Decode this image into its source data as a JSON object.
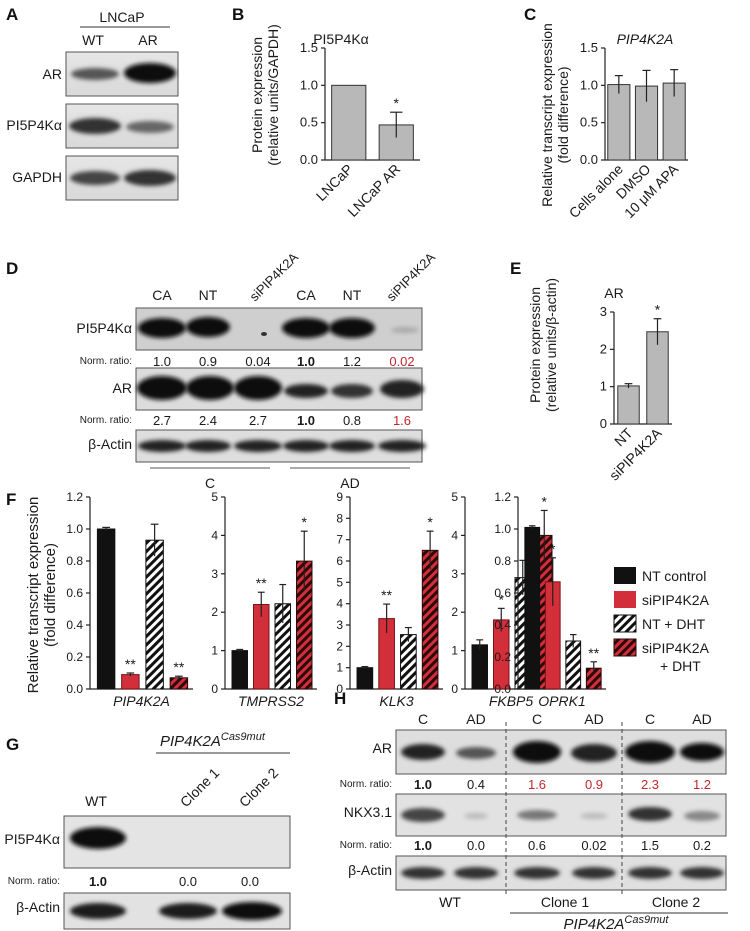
{
  "panels": {
    "A": {
      "letter": "A",
      "cell_line": "LNCaP",
      "lanes": [
        "WT",
        "AR"
      ],
      "rows": [
        "AR",
        "PI5P4Kα",
        "GAPDH"
      ]
    },
    "B": {
      "letter": "B",
      "title": "PI5P4Kα",
      "ylabel_1": "Protein expression",
      "ylabel_2": "(relative units/GAPDH)"
    },
    "C": {
      "letter": "C",
      "title": "PIP4K2A",
      "ylabel_1": "Relative transcript expression",
      "ylabel_2": "(fold difference)"
    },
    "D": {
      "letter": "D",
      "lanes": [
        "CA",
        "NT",
        "siPIP4K2A",
        "CA",
        "NT",
        "siPIP4K2A"
      ],
      "row1": "PI5P4Kα",
      "norm_label": "Norm. ratio:",
      "ratios1": [
        "1.0",
        "0.9",
        "0.04",
        "1.0",
        "1.2",
        "0.02"
      ],
      "row2": "AR",
      "ratios2": [
        "2.7",
        "2.4",
        "2.7",
        "1.0",
        "0.8",
        "1.6"
      ],
      "row3": "β-Actin",
      "group1": "C",
      "group2": "AD"
    },
    "E": {
      "letter": "E",
      "title": "AR",
      "ylabel_1": "Protein expression",
      "ylabel_2": "(relative units/β-actin)"
    },
    "F": {
      "letter": "F",
      "ylabel_1": "Relative transcript expression",
      "ylabel_2": "(fold difference)",
      "legend": [
        "NT control",
        "siPIP4K2A",
        "NT + DHT",
        "siPIP4K2A",
        "+ DHT"
      ]
    },
    "G": {
      "letter": "G",
      "gene": "PIP4K2A",
      "superscript": "Cas9mut",
      "lanes": [
        "WT",
        "Clone 1",
        "Clone 2"
      ],
      "row1": "PI5P4Kα",
      "norm_label": "Norm. ratio:",
      "ratios": [
        "1.0",
        "0.0",
        "0.0"
      ],
      "row2": "β-Actin"
    },
    "H": {
      "letter": "H",
      "lanes": [
        "C",
        "AD",
        "C",
        "AD",
        "C",
        "AD"
      ],
      "row1": "AR",
      "norm_label": "Norm. ratio:",
      "ratios1": [
        "1.0",
        "0.4",
        "1.6",
        "0.9",
        "2.3",
        "1.2"
      ],
      "row2": "NKX3.1",
      "ratios2": [
        "1.0",
        "0.0",
        "0.6",
        "0.02",
        "1.5",
        "0.2"
      ],
      "row3": "β-Actin",
      "groups": [
        "WT",
        "Clone 1",
        "Clone 2"
      ],
      "gene": "PIP4K2A",
      "superscript": "Cas9mut"
    }
  },
  "colors": {
    "grey_bar": "#b8b8b8",
    "black_bar": "#111111",
    "red_bar": "#d32f3a",
    "red_text": "#c0282d"
  },
  "chart_data": [
    {
      "id": "B",
      "type": "bar",
      "title": "PI5P4Kα",
      "categories": [
        "LNCaP",
        "LNCaP AR"
      ],
      "values": [
        1.0,
        0.47
      ],
      "errors": [
        0,
        0.17
      ],
      "significance": [
        "",
        "*"
      ],
      "ylim": [
        0,
        1.5
      ],
      "yticks": [
        "0.0",
        "0.5",
        "1.0",
        "1.5"
      ]
    },
    {
      "id": "C",
      "type": "bar",
      "title": "PIP4K2A",
      "categories": [
        "Cells alone",
        "DMSO",
        "10 μM APA"
      ],
      "values": [
        1.01,
        0.99,
        1.03
      ],
      "errors": [
        0.12,
        0.21,
        0.18
      ],
      "ylim": [
        0,
        1.5
      ],
      "yticks": [
        "0.0",
        "0.5",
        "1.0",
        "1.5"
      ]
    },
    {
      "id": "E",
      "type": "bar",
      "title": "AR",
      "categories": [
        "NT",
        "siPIP4K2A"
      ],
      "values": [
        1.02,
        2.47
      ],
      "errors": [
        0.06,
        0.35
      ],
      "significance": [
        "",
        "*"
      ],
      "ylim": [
        0,
        3
      ],
      "yticks": [
        "0",
        "1",
        "2",
        "3"
      ]
    },
    {
      "id": "F",
      "type": "bar",
      "series": [
        {
          "name": "NT control"
        },
        {
          "name": "siPIP4K2A"
        },
        {
          "name": "NT + DHT"
        },
        {
          "name": "siPIP4K2A + DHT"
        }
      ],
      "subplots": [
        {
          "gene": "PIP4K2A",
          "values": [
            1.0,
            0.09,
            0.93,
            0.07
          ],
          "errors": [
            0.01,
            0.01,
            0.1,
            0.01
          ],
          "significance": [
            "",
            "**",
            "",
            "**"
          ],
          "ylim": [
            0,
            1.2
          ],
          "yticks": [
            "0.0",
            "0.2",
            "0.4",
            "0.6",
            "0.8",
            "1.0",
            "1.2"
          ]
        },
        {
          "gene": "TMPRSS2",
          "values": [
            1.0,
            2.2,
            2.22,
            3.33
          ],
          "errors": [
            0.03,
            0.32,
            0.5,
            0.78
          ],
          "significance": [
            "",
            "**",
            "",
            "*"
          ],
          "ylim": [
            0,
            5
          ],
          "yticks": [
            "0",
            "1",
            "2",
            "3",
            "4",
            "5"
          ]
        },
        {
          "gene": "KLK3",
          "values": [
            1.0,
            3.3,
            2.55,
            6.5
          ],
          "errors": [
            0.05,
            0.68,
            0.33,
            0.9
          ],
          "significance": [
            "",
            "**",
            "",
            "*"
          ],
          "ylim": [
            0,
            9
          ],
          "yticks": [
            "0",
            "1",
            "2",
            "3",
            "4",
            "5",
            "6",
            "7",
            "8",
            "9"
          ]
        },
        {
          "gene": "FKBP5",
          "values": [
            1.15,
            1.8,
            2.9,
            4.0
          ],
          "errors": [
            0.13,
            0.3,
            0.45,
            0.65
          ],
          "significance": [
            "",
            "*",
            "",
            "*"
          ],
          "ylim": [
            0,
            5
          ],
          "yticks": [
            "0",
            "1",
            "2",
            "3",
            "4",
            "5"
          ]
        },
        {
          "gene": "OPRK1",
          "values": [
            1.01,
            0.67,
            0.3,
            0.13
          ],
          "errors": [
            0.01,
            0.15,
            0.04,
            0.04
          ],
          "significance": [
            "",
            "*",
            "",
            "**"
          ],
          "ylim": [
            0,
            1.2
          ],
          "yticks": [
            "0.0",
            "0.2",
            "0.4",
            "0.6",
            "0.8",
            "1.0",
            "1.2"
          ]
        }
      ]
    }
  ]
}
